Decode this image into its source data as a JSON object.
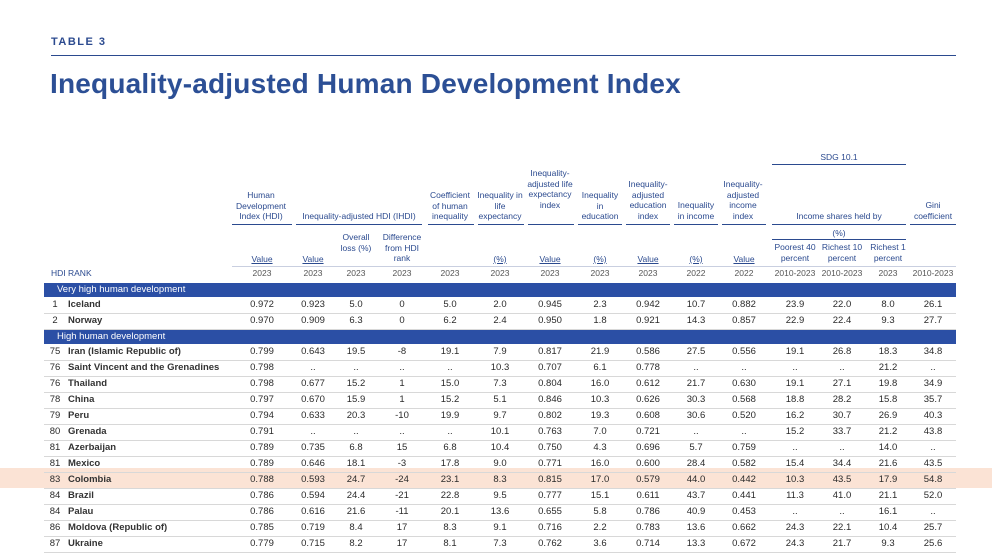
{
  "table_label": "TABLE 3",
  "title": "Inequality-adjusted Human Development Index",
  "sdg_label": "SDG 10.1",
  "headers": {
    "hdi": "Human Development Index (HDI)",
    "ihdi": "Inequality-adjusted HDI (IHDI)",
    "coef": "Coefficient of human inequality",
    "ineq_life": "Inequality in life expectancy",
    "ineq_life_idx": "Inequality-adjusted life expectancy index",
    "ineq_edu": "Inequality in education",
    "ineq_edu_idx": "Inequality-adjusted education index",
    "ineq_inc": "Inequality in income",
    "ineq_inc_idx": "Inequality-adjusted income index",
    "income_shares": "Income shares held by",
    "gini": "Gini coefficient",
    "overall_loss": "Overall loss (%)",
    "diff_rank": "Difference from HDI rank",
    "pct": "(%)",
    "poorest": "Poorest 40 percent",
    "richest10": "Richest 10 percent",
    "richest1": "Richest 1 percent",
    "hdi_rank": "HDI RANK"
  },
  "units": [
    "Value",
    "Value",
    "",
    "",
    "",
    "(%)",
    "Value",
    "(%)",
    "Value",
    "(%)",
    "Value",
    "",
    "",
    "",
    ""
  ],
  "years": [
    "2023",
    "2023",
    "2023",
    "2023",
    "2023",
    "2023",
    "2023",
    "2023",
    "2023",
    "2022",
    "2022",
    "2010-2023",
    "2010-2023",
    "2023",
    "2010-2023"
  ],
  "groups": {
    "very_high": "Very high human development",
    "high": "High human development"
  },
  "very_high_rows": [
    {
      "rank": "1",
      "name": "Iceland",
      "v": [
        "0.972",
        "0.923",
        "5.0",
        "0",
        "5.0",
        "2.0",
        "0.945",
        "2.3",
        "0.942",
        "10.7",
        "0.882",
        "23.9",
        "22.0",
        "8.0",
        "26.1"
      ]
    },
    {
      "rank": "2",
      "name": "Norway",
      "v": [
        "0.970",
        "0.909",
        "6.3",
        "0",
        "6.2",
        "2.4",
        "0.950",
        "1.8",
        "0.921",
        "14.3",
        "0.857",
        "22.9",
        "22.4",
        "9.3",
        "27.7"
      ]
    }
  ],
  "high_rows": [
    {
      "rank": "75",
      "name": "Iran (Islamic Republic of)",
      "v": [
        "0.799",
        "0.643",
        "19.5",
        "-8",
        "19.1",
        "7.9",
        "0.817",
        "21.9",
        "0.586",
        "27.5",
        "0.556",
        "19.1",
        "26.8",
        "18.3",
        "34.8"
      ]
    },
    {
      "rank": "76",
      "name": "Saint Vincent and the Grenadines",
      "v": [
        "0.798",
        "..",
        "..",
        "..",
        "..",
        "10.3",
        "0.707",
        "6.1",
        "0.778",
        "..",
        "..",
        "..",
        "..",
        "21.2",
        ".."
      ]
    },
    {
      "rank": "76",
      "name": "Thailand",
      "v": [
        "0.798",
        "0.677",
        "15.2",
        "1",
        "15.0",
        "7.3",
        "0.804",
        "16.0",
        "0.612",
        "21.7",
        "0.630",
        "19.1",
        "27.1",
        "19.8",
        "34.9"
      ]
    },
    {
      "rank": "78",
      "name": "China",
      "v": [
        "0.797",
        "0.670",
        "15.9",
        "1",
        "15.2",
        "5.1",
        "0.846",
        "10.3",
        "0.626",
        "30.3",
        "0.568",
        "18.8",
        "28.2",
        "15.8",
        "35.7"
      ]
    },
    {
      "rank": "79",
      "name": "Peru",
      "v": [
        "0.794",
        "0.633",
        "20.3",
        "-10",
        "19.9",
        "9.7",
        "0.802",
        "19.3",
        "0.608",
        "30.6",
        "0.520",
        "16.2",
        "30.7",
        "26.9",
        "40.3"
      ]
    },
    {
      "rank": "80",
      "name": "Grenada",
      "v": [
        "0.791",
        "..",
        "..",
        "..",
        "..",
        "10.1",
        "0.763",
        "7.0",
        "0.721",
        "..",
        "..",
        "15.2",
        "33.7",
        "21.2",
        "43.8"
      ]
    },
    {
      "rank": "81",
      "name": "Azerbaijan",
      "v": [
        "0.789",
        "0.735",
        "6.8",
        "15",
        "6.8",
        "10.4",
        "0.750",
        "4.3",
        "0.696",
        "5.7",
        "0.759",
        "..",
        "..",
        "14.0",
        ".."
      ]
    },
    {
      "rank": "81",
      "name": "Mexico",
      "v": [
        "0.789",
        "0.646",
        "18.1",
        "-3",
        "17.8",
        "9.0",
        "0.771",
        "16.0",
        "0.600",
        "28.4",
        "0.582",
        "15.4",
        "34.4",
        "21.6",
        "43.5"
      ]
    },
    {
      "rank": "83",
      "name": "Colombia",
      "v": [
        "0.788",
        "0.593",
        "24.7",
        "-24",
        "23.1",
        "8.3",
        "0.815",
        "17.0",
        "0.579",
        "44.0",
        "0.442",
        "10.3",
        "43.5",
        "17.9",
        "54.8"
      ]
    },
    {
      "rank": "84",
      "name": "Brazil",
      "v": [
        "0.786",
        "0.594",
        "24.4",
        "-21",
        "22.8",
        "9.5",
        "0.777",
        "15.1",
        "0.611",
        "43.7",
        "0.441",
        "11.3",
        "41.0",
        "21.1",
        "52.0"
      ]
    },
    {
      "rank": "84",
      "name": "Palau",
      "v": [
        "0.786",
        "0.616",
        "21.6",
        "-11",
        "20.1",
        "13.6",
        "0.655",
        "5.8",
        "0.786",
        "40.9",
        "0.453",
        "..",
        "..",
        "16.1",
        ".."
      ]
    },
    {
      "rank": "86",
      "name": "Moldova (Republic of)",
      "v": [
        "0.785",
        "0.719",
        "8.4",
        "17",
        "8.3",
        "9.1",
        "0.716",
        "2.2",
        "0.783",
        "13.6",
        "0.662",
        "24.3",
        "22.1",
        "10.4",
        "25.7"
      ]
    },
    {
      "rank": "87",
      "name": "Ukraine",
      "v": [
        "0.779",
        "0.715",
        "8.2",
        "17",
        "8.1",
        "7.3",
        "0.762",
        "3.6",
        "0.714",
        "13.3",
        "0.672",
        "24.3",
        "21.7",
        "9.3",
        "25.6"
      ]
    }
  ],
  "highlight_color": "#fbe3d5",
  "band_color": "#2b4fa5"
}
